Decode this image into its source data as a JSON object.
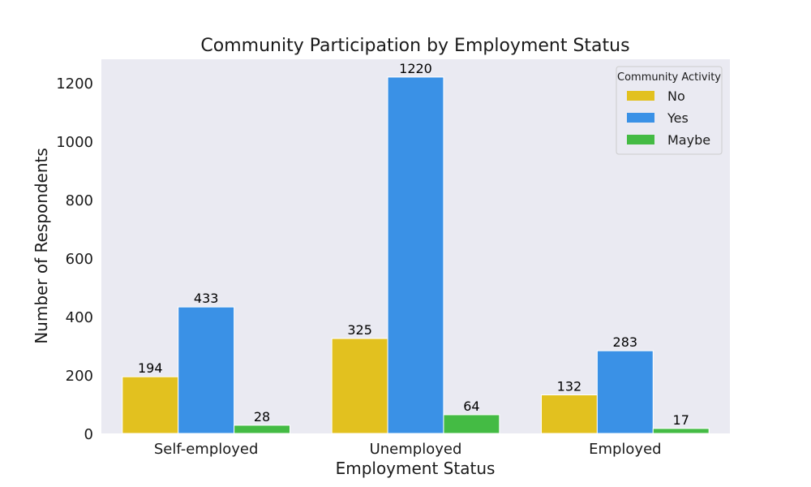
{
  "chart_data": {
    "type": "bar",
    "title": "Community Participation by Employment Status",
    "xlabel": "Employment Status",
    "ylabel": "Number of Respondents",
    "categories": [
      "Self-employed",
      "Unemployed",
      "Employed"
    ],
    "ylim": [
      0,
      1281
    ],
    "yticks": [
      0,
      200,
      400,
      600,
      800,
      1000,
      1200
    ],
    "grid": false,
    "legend": {
      "title": "Community Activity",
      "position": "top-right"
    },
    "series": [
      {
        "name": "No",
        "values": [
          194,
          325,
          132
        ],
        "color": "#e2c11f"
      },
      {
        "name": "Yes",
        "values": [
          433,
          1220,
          283
        ],
        "color": "#3a91e6"
      },
      {
        "name": "Maybe",
        "values": [
          28,
          64,
          17
        ],
        "color": "#44bb44"
      }
    ],
    "background": "#eaeaf2"
  }
}
